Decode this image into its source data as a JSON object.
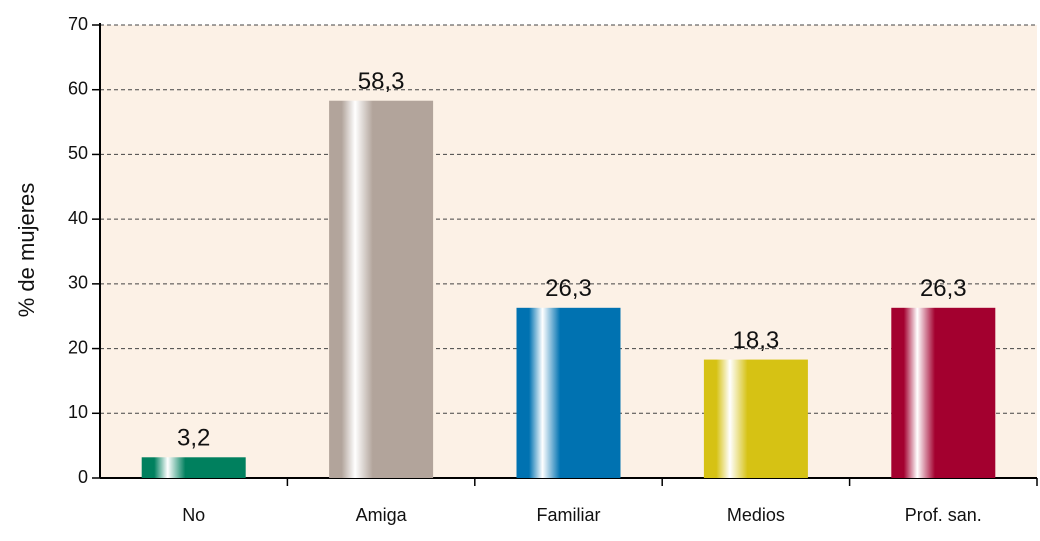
{
  "chart_data": {
    "type": "bar",
    "y_label": "% de mujeres",
    "categories": [
      "No",
      "Amiga",
      "Familiar",
      "Medios",
      "Prof. san."
    ],
    "values": [
      3.2,
      58.3,
      26.3,
      18.3,
      26.3
    ],
    "value_labels": [
      "3,2",
      "58,3",
      "26,3",
      "18,3",
      "26,3"
    ],
    "colors": [
      "#00805e",
      "#b2a49b",
      "#0072b1",
      "#d6c214",
      "#a3002f"
    ],
    "ylim": [
      0,
      70
    ],
    "yticks": [
      0,
      10,
      20,
      30,
      40,
      50,
      60,
      70
    ],
    "grid": true
  }
}
